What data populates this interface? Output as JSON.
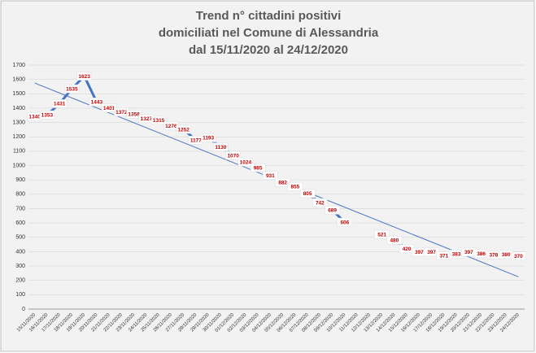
{
  "chart_data": {
    "type": "line",
    "title": [
      "Trend n° cittadini positivi",
      "domiciliati nel Comune di Alessandria",
      "dal 15/11/2020 al 24/12/2020"
    ],
    "x": [
      "15/11/2020",
      "16/11/2020",
      "17/11/2020",
      "18/11/2020",
      "19/11/2020",
      "20/11/2020",
      "21/11/2020",
      "22/11/2020",
      "23/11/2020",
      "24/11/2020",
      "25/11/2020",
      "26/11/2020",
      "27/11/2020",
      "28/11/2020",
      "29/11/2020",
      "30/11/2020",
      "01/12/2020",
      "02/12/2020",
      "03/12/2020",
      "04/12/2020",
      "05/12/2020",
      "06/12/2020",
      "07/12/2020",
      "08/12/2020",
      "09/12/2020",
      "10/12/2020",
      "11/12/2020",
      "12/12/2020",
      "13/12/2020",
      "14/12/2020",
      "15/12/2020",
      "16/12/2020",
      "17/12/2020",
      "18/12/2020",
      "19/12/2020",
      "20/12/2020",
      "21/12/2020",
      "22/12/2020",
      "23/12/2020",
      "24/12/2020"
    ],
    "values": [
      1340,
      1353,
      1431,
      1535,
      1623,
      1443,
      1401,
      1372,
      1358,
      1327,
      1315,
      1276,
      1252,
      1177,
      1193,
      1130,
      1070,
      1024,
      985,
      931,
      882,
      855,
      805,
      742,
      689,
      606,
      null,
      null,
      521,
      480,
      420,
      397,
      397,
      371,
      383,
      397,
      386,
      378,
      380,
      370
    ],
    "color": "#4472c4",
    "label_color": "#c00000",
    "trendline": [
      1575,
      225
    ],
    "ylim": [
      0,
      1700
    ],
    "yticks": [
      0,
      100,
      200,
      300,
      400,
      500,
      600,
      700,
      800,
      900,
      1000,
      1100,
      1200,
      1300,
      1400,
      1500,
      1600,
      1700
    ],
    "grid": true
  }
}
